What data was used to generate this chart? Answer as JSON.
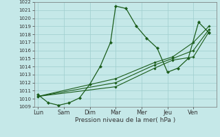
{
  "xlabel": "Pression niveau de la mer( hPa )",
  "bg_color": "#c5e8e8",
  "grid_color": "#9ecece",
  "line_color": "#1a5c1a",
  "ylim": [
    1009,
    1022
  ],
  "yticks": [
    1009,
    1010,
    1011,
    1012,
    1013,
    1014,
    1015,
    1016,
    1017,
    1018,
    1019,
    1020,
    1021,
    1022
  ],
  "x_labels": [
    "Lun",
    "Sam",
    "Dim",
    "Mar",
    "Mer",
    "Jeu",
    "Ven"
  ],
  "x_positions": [
    0,
    1,
    2,
    3,
    4,
    5,
    6
  ],
  "xlim": [
    -0.15,
    6.9
  ],
  "lines": [
    {
      "x": [
        0,
        0.4,
        0.8,
        1.2,
        1.6,
        2.0,
        2.4,
        2.8,
        3.0,
        3.4,
        3.8,
        4.2,
        4.6,
        5.0,
        5.4,
        5.8,
        6.2,
        6.6
      ],
      "y": [
        1010.5,
        1009.5,
        1009.2,
        1009.5,
        1010.1,
        1011.8,
        1014.0,
        1017.0,
        1021.5,
        1021.2,
        1019.0,
        1017.5,
        1016.3,
        1013.3,
        1013.8,
        1015.0,
        1019.5,
        1018.2
      ]
    },
    {
      "x": [
        0,
        3.0,
        4.5,
        5.2,
        6.0,
        6.6
      ],
      "y": [
        1010.3,
        1011.5,
        1013.8,
        1014.8,
        1015.2,
        1018.3
      ]
    },
    {
      "x": [
        0,
        3.0,
        4.5,
        5.2,
        6.0,
        6.6
      ],
      "y": [
        1010.3,
        1012.0,
        1014.2,
        1015.0,
        1016.0,
        1018.6
      ]
    },
    {
      "x": [
        0,
        3.0,
        4.5,
        5.2,
        6.0,
        6.6
      ],
      "y": [
        1010.3,
        1012.5,
        1014.5,
        1015.2,
        1017.0,
        1019.0
      ]
    }
  ]
}
